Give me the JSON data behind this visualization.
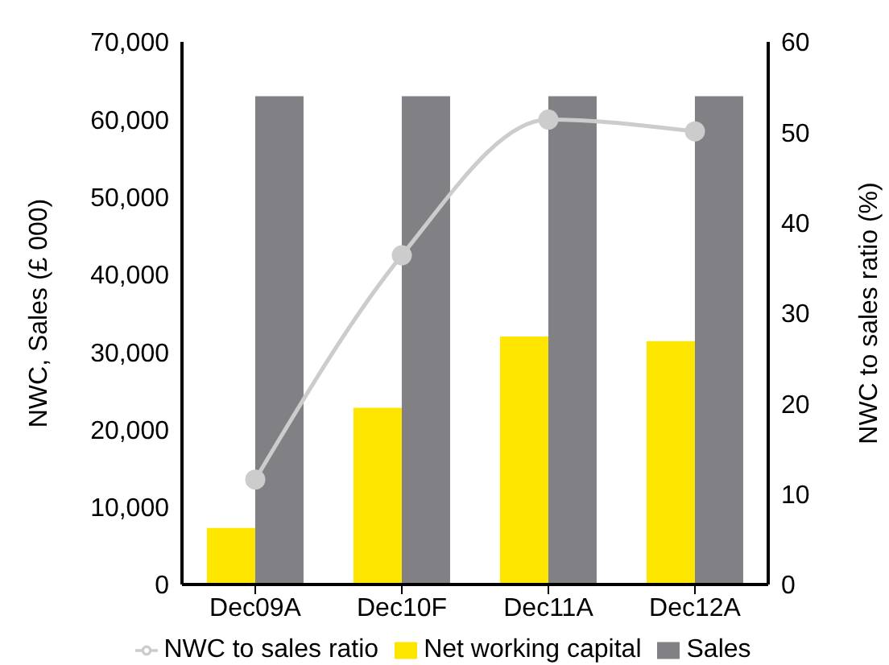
{
  "chart_data": {
    "type": "bar",
    "categories": [
      "Dec09A",
      "Dec10F",
      "Dec11A",
      "Dec12A"
    ],
    "series": [
      {
        "name": "Net working capital",
        "color": "#ffe600",
        "values": [
          7300,
          22800,
          32000,
          31400
        ]
      },
      {
        "name": "Sales",
        "color": "#808085",
        "values": [
          63000,
          63000,
          63000,
          63000
        ]
      },
      {
        "name": "NWC to sales ratio",
        "type": "line",
        "axis": "y2",
        "color": "#cccccc",
        "values": [
          11.6,
          36.4,
          51.4,
          50.1
        ]
      }
    ],
    "ylabel": "NWC, Sales (£ 000)",
    "y2label": "NWC to sales ratio (%)",
    "ylim": [
      0,
      70000
    ],
    "yticks": [
      {
        "value": 0,
        "label": "0"
      },
      {
        "value": 10000,
        "label": "10,000"
      },
      {
        "value": 20000,
        "label": "20,000"
      },
      {
        "value": 30000,
        "label": "30,000"
      },
      {
        "value": 40000,
        "label": "40,000"
      },
      {
        "value": 50000,
        "label": "50,000"
      },
      {
        "value": 60000,
        "label": "60,000"
      },
      {
        "value": 70000,
        "label": "70,000"
      }
    ],
    "y2lim": [
      0,
      60
    ],
    "y2ticks": [
      0,
      10,
      20,
      30,
      40,
      50,
      60
    ],
    "legend": "bottom",
    "marker": "circle",
    "grid": false
  }
}
